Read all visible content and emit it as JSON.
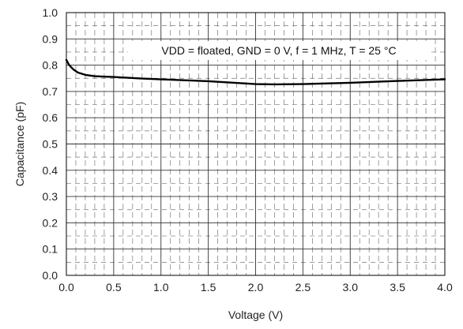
{
  "chart_data": {
    "type": "line",
    "title": "",
    "xlabel": "Voltage (V)",
    "ylabel": "Capacitance (pF)",
    "xlim": [
      0.0,
      4.0
    ],
    "ylim": [
      0.0,
      1.0
    ],
    "x_ticks": [
      "0.0",
      "0.5",
      "1.0",
      "1.5",
      "2.0",
      "2.5",
      "3.0",
      "3.5",
      "4.0"
    ],
    "y_ticks": [
      "0.0",
      "0.1",
      "0.2",
      "0.3",
      "0.4",
      "0.5",
      "0.6",
      "0.7",
      "0.8",
      "0.9",
      "1.0"
    ],
    "grid": true,
    "annotation": "VDD = floated, GND = 0 V, f = 1 MHz, T = 25 °C",
    "series": [
      {
        "color": "#000000",
        "x": [
          0.0,
          0.03,
          0.07,
          0.12,
          0.2,
          0.3,
          0.5,
          0.8,
          1.0,
          1.5,
          2.0,
          2.2,
          2.5,
          3.0,
          3.5,
          4.0
        ],
        "y": [
          0.82,
          0.8,
          0.785,
          0.772,
          0.763,
          0.758,
          0.755,
          0.749,
          0.746,
          0.739,
          0.728,
          0.727,
          0.728,
          0.733,
          0.74,
          0.746
        ]
      }
    ]
  }
}
